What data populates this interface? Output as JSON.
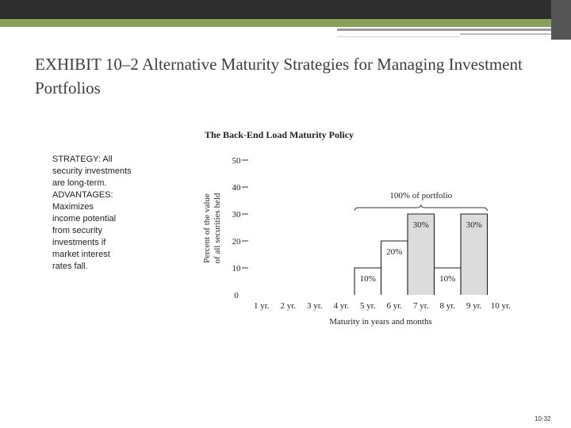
{
  "slide": {
    "title": "EXHIBIT 10–2 Alternative Maturity Strategies for Managing Investment Portfolios",
    "slide_number": "10-32",
    "strategy_lines": [
      "STRATEGY: All",
      "security investments",
      "are long-term.",
      "ADVANTAGES:",
      "Maximizes",
      "income potential",
      "from security",
      "investments if",
      "market interest",
      "rates fall."
    ],
    "colors": {
      "accent_bar": "#88a05a",
      "top_bar": "#2e2e2e",
      "bar_fill": "#dcdcdc"
    }
  },
  "chart_data": {
    "type": "bar",
    "title": "The Back-End Load Maturity Policy",
    "ylabel_lines": [
      "Percent of the value",
      "of all securities held"
    ],
    "xlabel": "Maturity in years and months",
    "categories": [
      "1 yr.",
      "2 yr.",
      "3 yr.",
      "4 yr.",
      "5 yr.",
      "6 yr.",
      "7 yr.",
      "8 yr.",
      "9 yr.",
      "10 yr."
    ],
    "values": [
      0,
      0,
      0,
      0,
      10,
      20,
      30,
      10,
      30,
      0
    ],
    "bar_labels": [
      "",
      "",
      "",
      "",
      "10%",
      "20%",
      "30%",
      "10%",
      "30%",
      ""
    ],
    "shaded": [
      false,
      false,
      false,
      false,
      false,
      false,
      true,
      false,
      true,
      false
    ],
    "yticks": [
      0,
      10,
      20,
      30,
      40,
      50
    ],
    "ylim": [
      0,
      50
    ],
    "grid": false,
    "annotation": "100% of portfolio"
  }
}
